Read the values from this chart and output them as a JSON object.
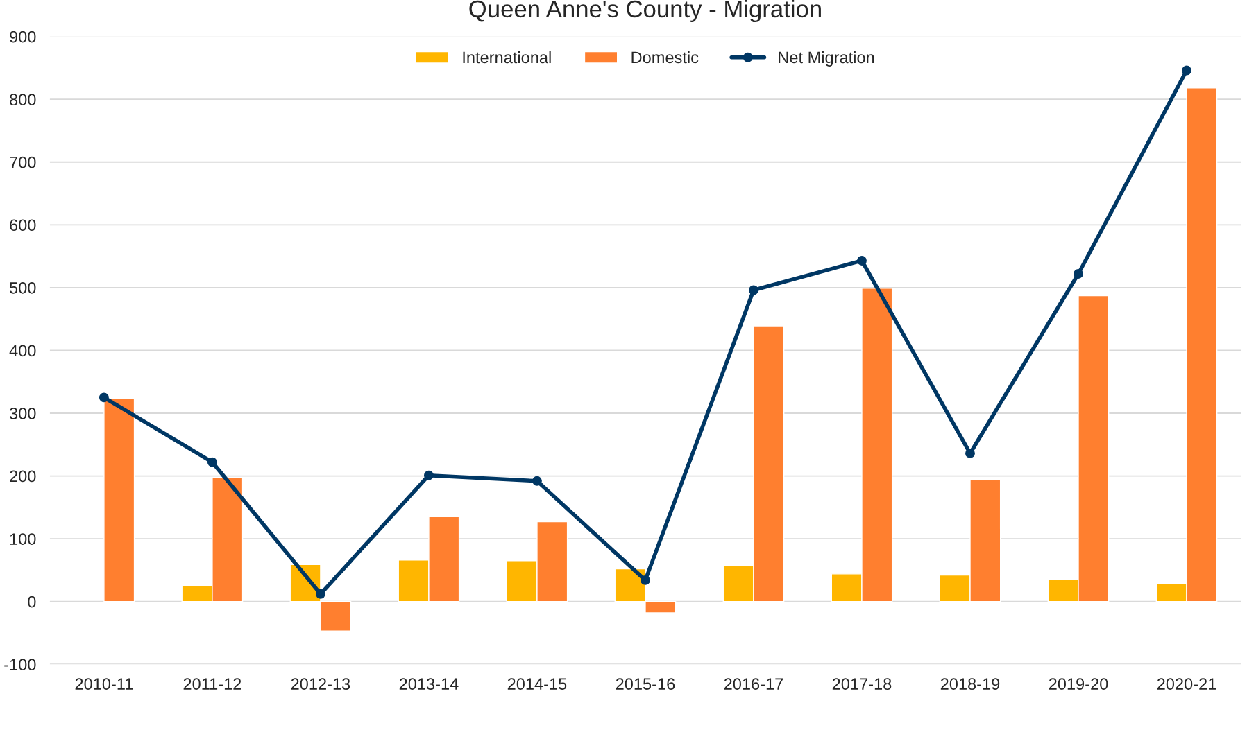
{
  "chart_data": {
    "type": "bar",
    "title": "Queen Anne's County - Migration",
    "categories": [
      "2010-11",
      "2011-12",
      "2012-13",
      "2013-14",
      "2014-15",
      "2015-16",
      "2016-17",
      "2017-18",
      "2018-19",
      "2019-20",
      "2020-21"
    ],
    "series": [
      {
        "name": "International",
        "color": "#ffb600",
        "values": [
          null,
          25,
          59,
          66,
          65,
          52,
          57,
          44,
          42,
          35,
          28
        ]
      },
      {
        "name": "Domestic",
        "color": "#ff7f2f",
        "values": [
          324,
          197,
          -47,
          135,
          127,
          -18,
          439,
          499,
          194,
          487,
          818
        ]
      },
      {
        "name": "Net Migration",
        "type": "line",
        "color": "#003764",
        "marker": "circle",
        "values": [
          325,
          222,
          12,
          201,
          192,
          34,
          496,
          543,
          236,
          522,
          846
        ]
      }
    ],
    "ylim": [
      -100,
      900
    ],
    "yticks": [
      -100,
      0,
      100,
      200,
      300,
      400,
      500,
      600,
      700,
      800,
      900
    ],
    "grid": "y",
    "legend": "top"
  }
}
